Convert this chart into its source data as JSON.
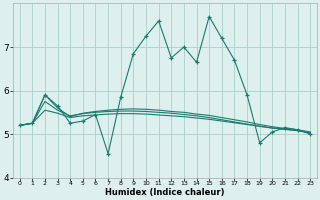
{
  "xlabel": "Humidex (Indice chaleur)",
  "x_values": [
    0,
    1,
    2,
    3,
    4,
    5,
    6,
    7,
    8,
    9,
    10,
    11,
    12,
    13,
    14,
    15,
    16,
    17,
    18,
    19,
    20,
    21,
    22,
    23
  ],
  "line1": [
    5.2,
    5.25,
    5.9,
    5.65,
    5.25,
    5.3,
    5.45,
    4.55,
    5.85,
    6.85,
    7.25,
    7.6,
    6.75,
    7.0,
    6.65,
    7.7,
    7.2,
    6.7,
    5.9,
    4.8,
    5.05,
    5.15,
    5.1,
    5.0
  ],
  "line2": [
    5.2,
    5.25,
    5.9,
    5.6,
    5.4,
    5.48,
    5.52,
    5.55,
    5.57,
    5.58,
    5.57,
    5.55,
    5.52,
    5.5,
    5.46,
    5.43,
    5.38,
    5.33,
    5.28,
    5.22,
    5.17,
    5.13,
    5.1,
    5.05
  ],
  "line3": [
    5.2,
    5.25,
    5.75,
    5.55,
    5.42,
    5.47,
    5.5,
    5.52,
    5.53,
    5.53,
    5.52,
    5.5,
    5.48,
    5.45,
    5.42,
    5.38,
    5.33,
    5.28,
    5.23,
    5.18,
    5.14,
    5.11,
    5.08,
    5.03
  ],
  "line4": [
    5.2,
    5.25,
    5.55,
    5.48,
    5.38,
    5.42,
    5.44,
    5.46,
    5.47,
    5.47,
    5.46,
    5.44,
    5.42,
    5.4,
    5.37,
    5.34,
    5.3,
    5.26,
    5.22,
    5.18,
    5.14,
    5.11,
    5.08,
    5.03
  ],
  "line_color": "#1a7a6e",
  "bg_color": "#ddf0ee",
  "grid_color": "#aacfcc",
  "ylim": [
    4.0,
    8.0
  ],
  "xlim_min": -0.5,
  "xlim_max": 23.5,
  "yticks": [
    4,
    5,
    6,
    7
  ],
  "xticks": [
    0,
    1,
    2,
    3,
    4,
    5,
    6,
    7,
    8,
    9,
    10,
    11,
    12,
    13,
    14,
    15,
    16,
    17,
    18,
    19,
    20,
    21,
    22,
    23
  ]
}
